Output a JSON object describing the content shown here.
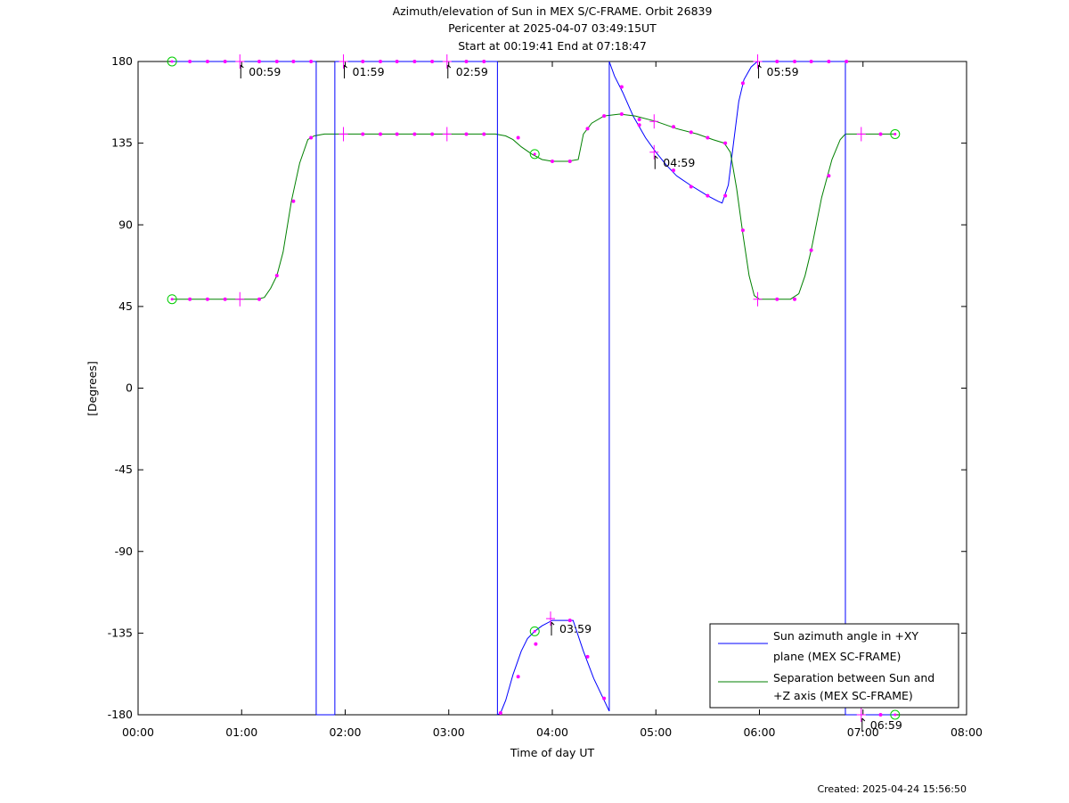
{
  "chart_data": {
    "type": "line",
    "title": "Azimuth/elevation of Sun in MEX S/C-FRAME.  Orbit 26839",
    "subtitle_lines": [
      "Pericenter at 2025-04-07 03:49:15UT",
      "Start at 00:19:41 End at 07:18:47"
    ],
    "xlabel": "Time of day UT",
    "ylabel": "[Degrees]",
    "xlim": [
      0,
      8
    ],
    "ylim": [
      -180,
      180
    ],
    "x_ticks": [
      "00:00",
      "01:00",
      "02:00",
      "03:00",
      "04:00",
      "05:00",
      "06:00",
      "07:00",
      "08:00"
    ],
    "y_ticks": [
      "180",
      "135",
      "90",
      "45",
      "0",
      "-45",
      "-90",
      "-135",
      "-180"
    ],
    "grid": false,
    "legend_position": "bottom-right",
    "series": [
      {
        "name": "Sun azimuth angle in +XY plane (MEX SC-FRAME)",
        "legend_lines": [
          "Sun azimuth angle in +XY",
          "plane (MEX SC-FRAME)"
        ],
        "color": "#0000ff",
        "segments": [
          [
            [
              0.328,
              180
            ],
            [
              1.0,
              180
            ],
            [
              1.7,
              180
            ],
            [
              1.72,
              180
            ]
          ],
          [
            [
              1.72,
              -180
            ],
            [
              1.8,
              -180
            ],
            [
              1.9,
              -180
            ]
          ],
          [
            [
              1.9,
              180
            ],
            [
              2.5,
              180
            ],
            [
              3.0,
              180
            ],
            [
              3.47,
              180
            ]
          ],
          [
            [
              3.47,
              -180
            ],
            [
              3.5,
              -179
            ],
            [
              3.55,
              -172
            ],
            [
              3.62,
              -158
            ],
            [
              3.7,
              -145
            ],
            [
              3.76,
              -138
            ],
            [
              3.83,
              -134
            ],
            [
              3.9,
              -131
            ],
            [
              4.0,
              -128
            ],
            [
              4.1,
              -128
            ],
            [
              4.2,
              -128
            ],
            [
              4.3,
              -145
            ],
            [
              4.4,
              -160
            ],
            [
              4.5,
              -172
            ],
            [
              4.55,
              -178
            ]
          ],
          [
            [
              4.55,
              180
            ],
            [
              4.6,
              172
            ],
            [
              4.68,
              163
            ],
            [
              4.78,
              150
            ],
            [
              4.9,
              138
            ],
            [
              5.0,
              130
            ],
            [
              5.1,
              123
            ],
            [
              5.2,
              117
            ],
            [
              5.33,
              112
            ],
            [
              5.5,
              106
            ],
            [
              5.6,
              103
            ],
            [
              5.64,
              102
            ],
            [
              5.7,
              112
            ],
            [
              5.75,
              135
            ],
            [
              5.8,
              158
            ],
            [
              5.85,
              170
            ],
            [
              5.92,
              177
            ],
            [
              5.98,
              180
            ],
            [
              6.0,
              180
            ]
          ],
          [
            [
              6.0,
              180
            ],
            [
              6.5,
              180
            ],
            [
              6.83,
              180
            ]
          ],
          [
            [
              6.83,
              -180
            ],
            [
              7.0,
              -180
            ],
            [
              7.31,
              -180
            ]
          ]
        ]
      },
      {
        "name": "Separation between Sun and +Z axis (MEX SC-FRAME)",
        "legend_lines": [
          "Separation between Sun and",
          "+Z axis (MEX SC-FRAME)"
        ],
        "color": "#008000",
        "segments": [
          [
            [
              0.328,
              49
            ],
            [
              0.6,
              49
            ],
            [
              1.0,
              49
            ],
            [
              1.15,
              49
            ],
            [
              1.22,
              50
            ],
            [
              1.28,
              55
            ],
            [
              1.34,
              62
            ],
            [
              1.4,
              75
            ],
            [
              1.48,
              103
            ],
            [
              1.56,
              124
            ],
            [
              1.64,
              137
            ],
            [
              1.7,
              139
            ],
            [
              1.8,
              140
            ],
            [
              2.0,
              140
            ],
            [
              2.5,
              140
            ],
            [
              3.0,
              140
            ],
            [
              3.3,
              140
            ],
            [
              3.45,
              140
            ],
            [
              3.55,
              139
            ],
            [
              3.62,
              137
            ],
            [
              3.7,
              133
            ],
            [
              3.8,
              129
            ],
            [
              3.9,
              126
            ],
            [
              4.0,
              125
            ],
            [
              4.15,
              125
            ],
            [
              4.25,
              126
            ],
            [
              4.3,
              140
            ],
            [
              4.38,
              146
            ],
            [
              4.5,
              150
            ],
            [
              4.65,
              151
            ],
            [
              4.8,
              150
            ],
            [
              5.0,
              147
            ],
            [
              5.2,
              143
            ],
            [
              5.4,
              140
            ],
            [
              5.55,
              137
            ],
            [
              5.66,
              135
            ],
            [
              5.72,
              130
            ],
            [
              5.78,
              110
            ],
            [
              5.84,
              85
            ],
            [
              5.9,
              62
            ],
            [
              5.95,
              51
            ],
            [
              6.0,
              49
            ],
            [
              6.15,
              49
            ],
            [
              6.3,
              49
            ],
            [
              6.38,
              52
            ],
            [
              6.44,
              62
            ],
            [
              6.5,
              76
            ],
            [
              6.6,
              105
            ],
            [
              6.7,
              126
            ],
            [
              6.78,
              137
            ],
            [
              6.83,
              140
            ],
            [
              7.0,
              140
            ],
            [
              7.31,
              140
            ]
          ]
        ]
      }
    ],
    "markers_azimuth": [
      [
        0.5,
        180
      ],
      [
        0.67,
        180
      ],
      [
        0.84,
        180
      ],
      [
        1.17,
        180
      ],
      [
        1.34,
        180
      ],
      [
        1.5,
        180
      ],
      [
        1.67,
        180
      ],
      [
        2.17,
        180
      ],
      [
        2.34,
        180
      ],
      [
        2.5,
        180
      ],
      [
        2.67,
        180
      ],
      [
        2.84,
        180
      ],
      [
        3.17,
        180
      ],
      [
        3.34,
        180
      ],
      [
        3.5,
        -179
      ],
      [
        3.67,
        -159
      ],
      [
        3.84,
        -141
      ],
      [
        4.17,
        -128
      ],
      [
        4.34,
        -148
      ],
      [
        4.5,
        -171
      ],
      [
        4.67,
        166
      ],
      [
        4.84,
        145
      ],
      [
        5.17,
        120
      ],
      [
        5.34,
        111
      ],
      [
        5.5,
        106
      ],
      [
        5.67,
        106
      ],
      [
        5.84,
        168
      ],
      [
        6.17,
        180
      ],
      [
        6.34,
        180
      ],
      [
        6.5,
        180
      ],
      [
        6.67,
        180
      ],
      [
        6.84,
        180
      ],
      [
        7.17,
        -180
      ]
    ],
    "markers_separation": [
      [
        0.5,
        49
      ],
      [
        0.67,
        49
      ],
      [
        0.84,
        49
      ],
      [
        1.17,
        49
      ],
      [
        1.34,
        62
      ],
      [
        1.5,
        103
      ],
      [
        1.67,
        138
      ],
      [
        2.17,
        140
      ],
      [
        2.34,
        140
      ],
      [
        2.5,
        140
      ],
      [
        2.67,
        140
      ],
      [
        2.84,
        140
      ],
      [
        3.17,
        140
      ],
      [
        3.34,
        140
      ],
      [
        3.67,
        138
      ],
      [
        4.0,
        125
      ],
      [
        4.17,
        125
      ],
      [
        4.34,
        143
      ],
      [
        4.5,
        150
      ],
      [
        4.67,
        151
      ],
      [
        4.84,
        148
      ],
      [
        5.17,
        144
      ],
      [
        5.34,
        141
      ],
      [
        5.5,
        138
      ],
      [
        5.67,
        135
      ],
      [
        5.84,
        87
      ],
      [
        6.17,
        49
      ],
      [
        6.34,
        49
      ],
      [
        6.5,
        76
      ],
      [
        6.67,
        117
      ],
      [
        7.17,
        140
      ]
    ],
    "hour_ticks": [
      {
        "label": "00:59",
        "t": 0.983,
        "v": 180,
        "series": "azimuth"
      },
      {
        "label": "01:59",
        "t": 1.983,
        "v": 180,
        "series": "azimuth"
      },
      {
        "label": "02:59",
        "t": 2.983,
        "v": 180,
        "series": "azimuth"
      },
      {
        "label": "03:59",
        "t": 3.983,
        "v": -127,
        "series": "azimuth"
      },
      {
        "label": "04:59",
        "t": 4.983,
        "v": 130,
        "series": "azimuth"
      },
      {
        "label": "05:59",
        "t": 5.983,
        "v": 180,
        "series": "azimuth"
      },
      {
        "label": "06:59",
        "t": 6.983,
        "v": -180,
        "series": "azimuth"
      }
    ],
    "extra_hour_crosses_separation": [
      [
        0.983,
        49
      ],
      [
        1.983,
        140
      ],
      [
        2.983,
        140
      ],
      [
        4.983,
        147
      ],
      [
        5.983,
        49
      ],
      [
        6.983,
        140
      ]
    ],
    "circle_markers": [
      [
        0.328,
        180
      ],
      [
        0.328,
        49
      ],
      [
        3.83,
        129
      ],
      [
        3.83,
        -134
      ],
      [
        7.31,
        140
      ],
      [
        7.31,
        -180
      ]
    ],
    "colors": {
      "azimuth": "#0000ff",
      "separation": "#008000",
      "markers": "#ff00ff",
      "circles": "#00cc00"
    }
  },
  "footer": {
    "created": "Created: 2025-04-24 15:56:50"
  }
}
